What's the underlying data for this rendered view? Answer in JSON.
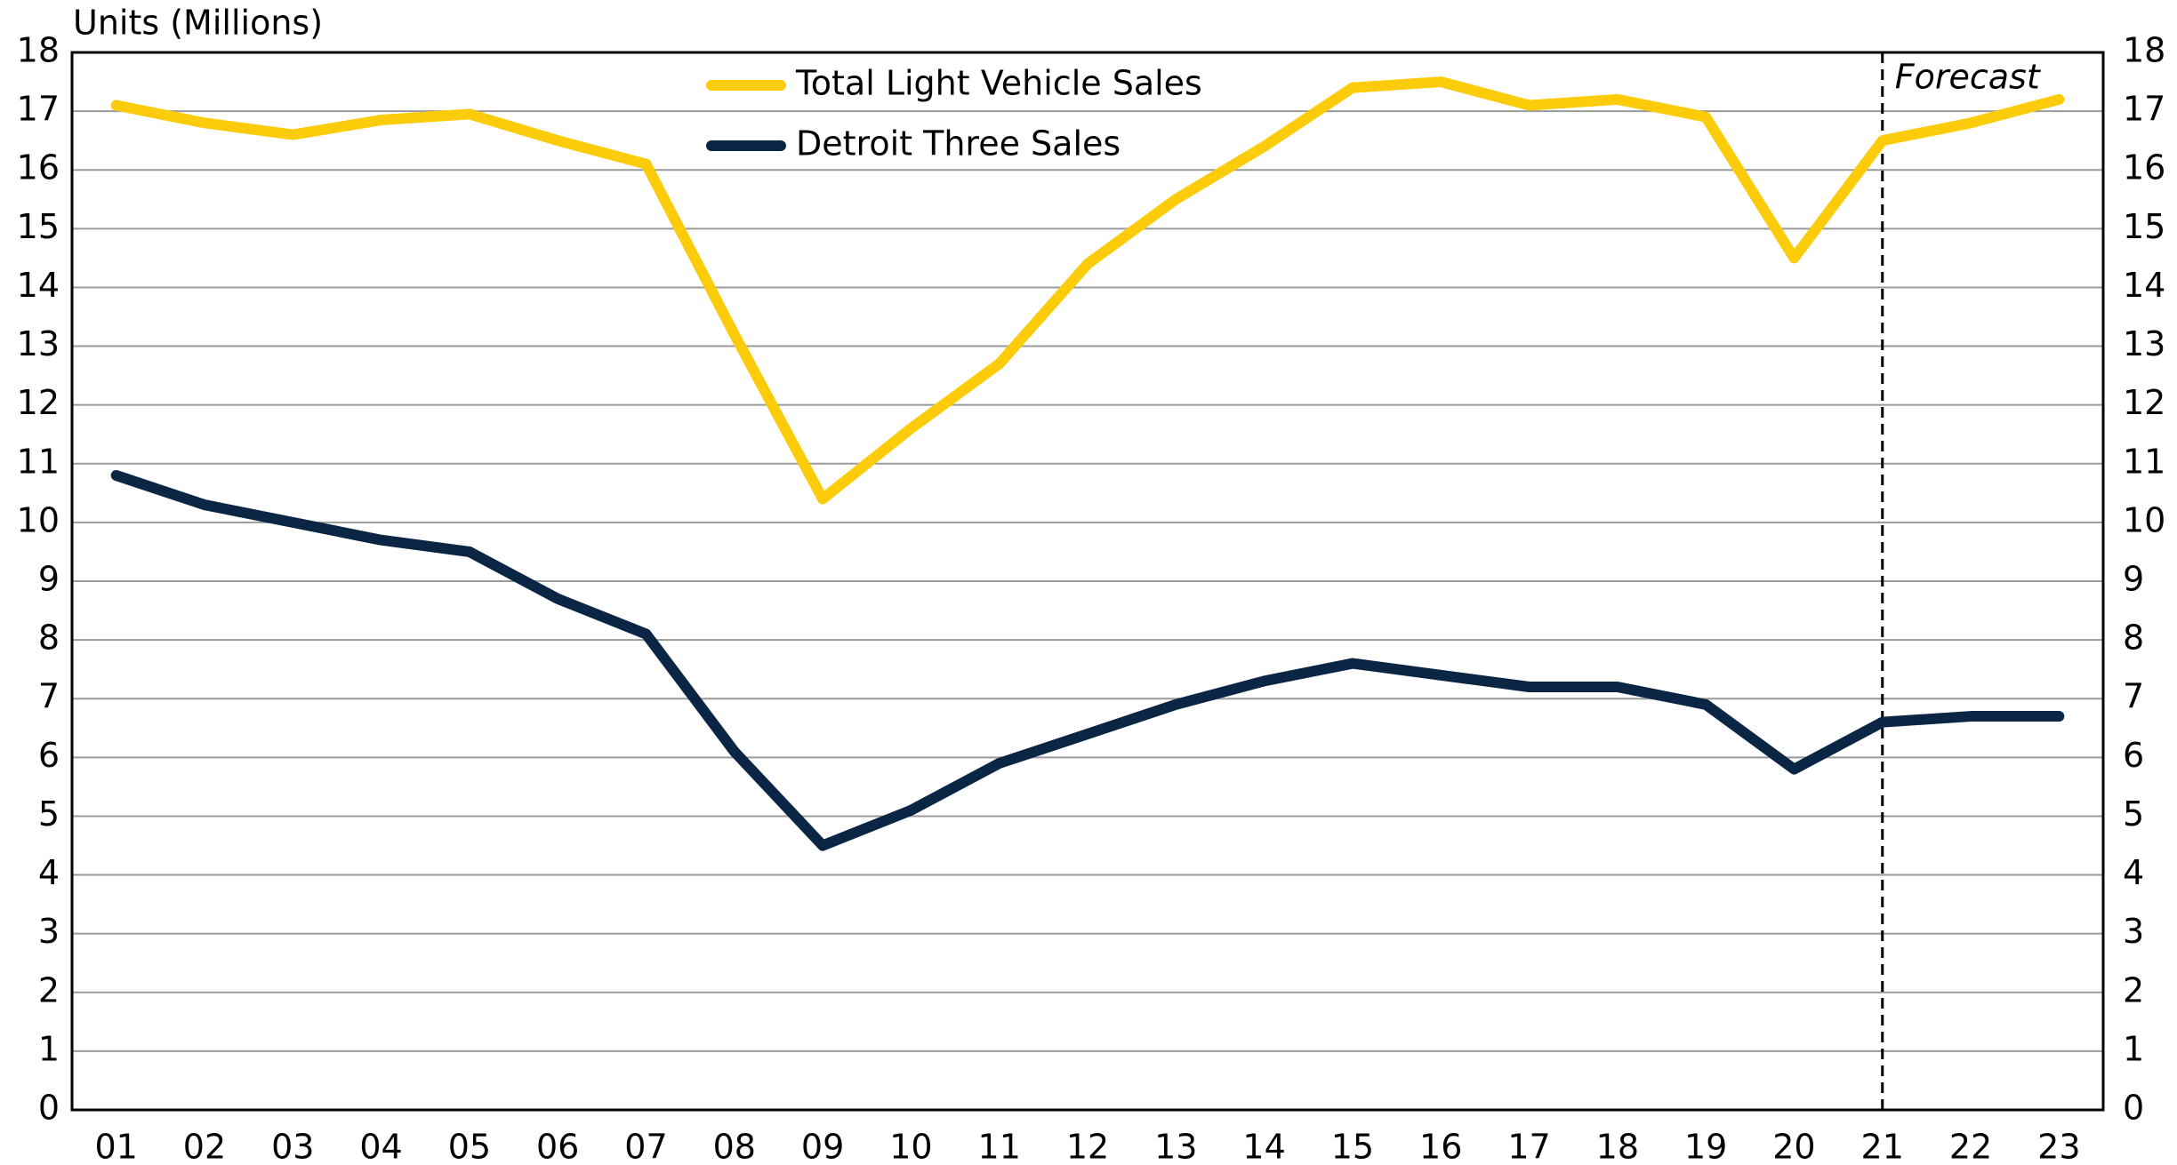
{
  "chart_data": {
    "type": "line",
    "y_axis_label": "Units (Millions)",
    "categories": [
      "01",
      "02",
      "03",
      "04",
      "05",
      "06",
      "07",
      "08",
      "09",
      "10",
      "11",
      "12",
      "13",
      "14",
      "15",
      "16",
      "17",
      "18",
      "19",
      "20",
      "21",
      "22",
      "23"
    ],
    "series": [
      {
        "name": "Total Light Vehicle Sales",
        "color": "#fccc0a",
        "values": [
          17.1,
          16.8,
          16.6,
          16.85,
          16.95,
          16.5,
          16.1,
          13.2,
          10.4,
          11.6,
          12.7,
          14.4,
          15.5,
          16.4,
          17.4,
          17.5,
          17.1,
          17.2,
          16.9,
          14.5,
          16.5,
          16.8,
          17.2
        ]
      },
      {
        "name": "Detroit Three Sales",
        "color": "#0b2545",
        "values": [
          10.8,
          10.3,
          10.0,
          9.7,
          9.5,
          8.7,
          8.1,
          6.1,
          4.5,
          5.1,
          5.9,
          6.4,
          6.9,
          7.3,
          7.6,
          7.4,
          7.2,
          7.2,
          6.9,
          5.8,
          6.6,
          6.7,
          6.7
        ]
      }
    ],
    "ylim": [
      0,
      18
    ],
    "yticks": [
      0,
      1,
      2,
      3,
      4,
      5,
      6,
      7,
      8,
      9,
      10,
      11,
      12,
      13,
      14,
      15,
      16,
      17,
      18
    ],
    "grid": true,
    "legend": "top",
    "annotation": {
      "text": "Forecast",
      "category": "21"
    }
  }
}
